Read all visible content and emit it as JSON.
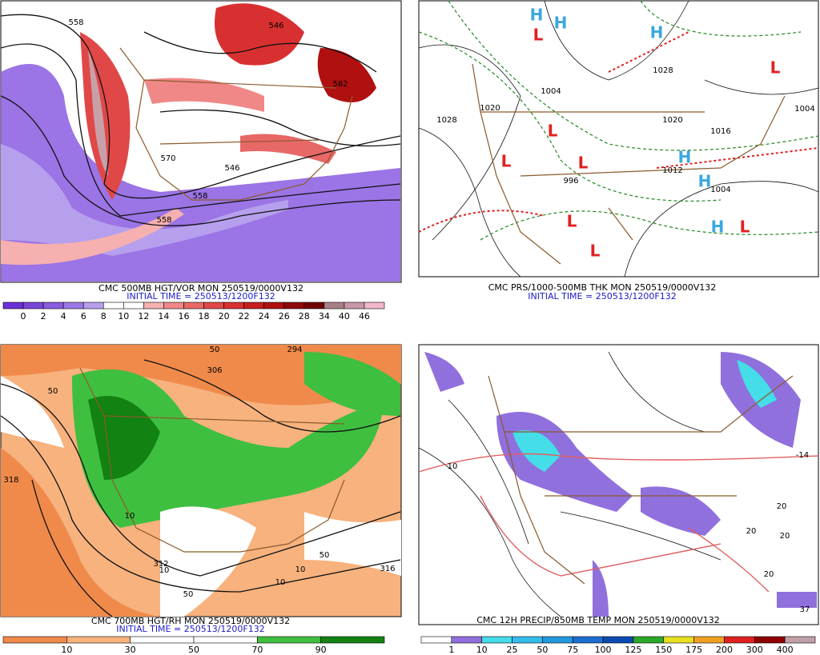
{
  "panels": [
    {
      "caption": "CMC 500MB HGT/VOR MON 250519/0000V132",
      "initial_time": "INITIAL TIME = 250513/1200F132",
      "colorbar": {
        "labels": [
          "0",
          "2",
          "4",
          "6",
          "8",
          "10",
          "12",
          "14",
          "16",
          "18",
          "20",
          "22",
          "24",
          "26",
          "28",
          "34",
          "40",
          "46"
        ],
        "colors": [
          "#6a2fd6",
          "#7a45d8",
          "#8a5ce0",
          "#9d78e6",
          "#b6a0ee",
          "#ffffff",
          "#ffffff",
          "#f6b0b0",
          "#f08888",
          "#e86868",
          "#e04848",
          "#d83030",
          "#c81e1e",
          "#b01010",
          "#900808",
          "#700000",
          "#a88088",
          "#c898a8",
          "#f0b8c8"
        ]
      },
      "contour_labels": [
        "558",
        "546",
        "570",
        "582",
        "558",
        "546",
        "558"
      ]
    },
    {
      "caption": "CMC PRS/1000-500MB THK MON 250519/0000V132",
      "initial_time": "INITIAL TIME = 250513/1200F132",
      "contour_labels": [
        "1028",
        "1020",
        "1004",
        "1028",
        "1020",
        "1004",
        "1012",
        "996",
        "1004",
        "1016"
      ],
      "centers": [
        "L",
        "H",
        "H",
        "L",
        "L",
        "L",
        "H",
        "L",
        "H",
        "H",
        "L",
        "L",
        "H",
        "L"
      ]
    },
    {
      "caption": "CMC 700MB HGT/RH MON 250519/0000V132",
      "initial_time": "INITIAL TIME = 250513/1200F132",
      "colorbar": {
        "labels": [
          "10",
          "30",
          "50",
          "70",
          "90"
        ],
        "colors": [
          "#f08a4a",
          "#f7b27e",
          "#ffffff",
          "#ffffff",
          "#3fbf3f",
          "#128212"
        ]
      },
      "contour_labels": [
        "50",
        "294",
        "306",
        "318",
        "50",
        "10",
        "312",
        "10",
        "10",
        "50",
        "10",
        "316",
        "50"
      ]
    },
    {
      "caption": "CMC 12H PRECIP/850MB TEMP MON 250519/0000V132",
      "colorbar": {
        "labels": [
          "1",
          "10",
          "25",
          "50",
          "75",
          "100",
          "125",
          "150",
          "175",
          "200",
          "300",
          "400"
        ],
        "colors": [
          "#ffffff",
          "#9070dd",
          "#44dde8",
          "#33bbee",
          "#2299dd",
          "#1a6fd0",
          "#0b4ab0",
          "#2aa82a",
          "#e8e020",
          "#f0a020",
          "#e02020",
          "#900000",
          "#c0a0a8"
        ]
      },
      "contour_labels": [
        "10",
        "20",
        "20",
        "20",
        "20",
        "37",
        "-14"
      ]
    }
  ]
}
